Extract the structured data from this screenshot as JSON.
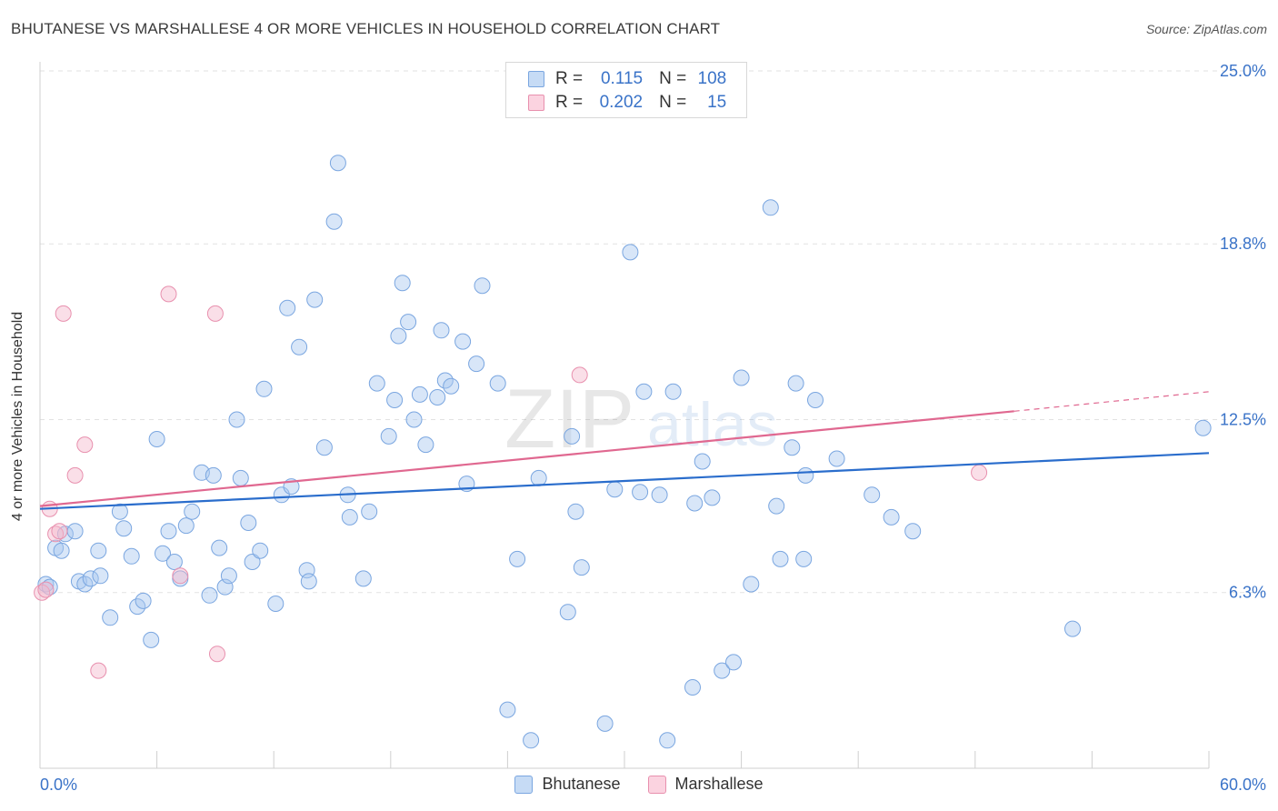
{
  "header": {
    "title": "BHUTANESE VS MARSHALLESE 4 OR MORE VEHICLES IN HOUSEHOLD CORRELATION CHART",
    "source": "Source: ZipAtlas.com"
  },
  "stats": {
    "r_label": "R =",
    "n_label": "N =",
    "rows": [
      {
        "r": "0.115",
        "n": "108",
        "color": "#a8c8f0"
      },
      {
        "r": "0.202",
        "n": "15",
        "color": "#f5b8cc"
      }
    ]
  },
  "legend": {
    "items": [
      {
        "label": "Bhutanese",
        "color": "#a8c8f0"
      },
      {
        "label": "Marshallese",
        "color": "#f5b8cc"
      }
    ]
  },
  "colors": {
    "blue": "#a8c8f0",
    "blue_line": "#2a6dcc",
    "pink": "#f5b8cc",
    "pink_line": "#e06890",
    "tick_text": "#3a73c8"
  },
  "watermark": {
    "zip": "ZIP",
    "atlas": "atlas"
  },
  "chart_data": {
    "type": "scatter",
    "title": "BHUTANESE VS MARSHALLESE 4 OR MORE VEHICLES IN HOUSEHOLD CORRELATION CHART",
    "xlabel": "",
    "ylabel": "4 or more Vehicles in Household",
    "xlim": [
      0,
      60
    ],
    "ylim": [
      0,
      25
    ],
    "x_tick_labels": [
      "0.0%",
      "60.0%"
    ],
    "y_ticks": [
      6.3,
      12.5,
      18.8,
      25.0
    ],
    "y_tick_labels": [
      "6.3%",
      "12.5%",
      "18.8%",
      "25.0%"
    ],
    "series": [
      {
        "name": "Bhutanese",
        "trend": {
          "x": [
            0,
            60
          ],
          "y": [
            9.3,
            11.3
          ]
        },
        "points": [
          [
            0.3,
            6.6
          ],
          [
            0.5,
            6.5
          ],
          [
            0.8,
            7.9
          ],
          [
            1.1,
            7.8
          ],
          [
            1.3,
            8.4
          ],
          [
            1.8,
            8.5
          ],
          [
            2.0,
            6.7
          ],
          [
            2.3,
            6.6
          ],
          [
            2.6,
            6.8
          ],
          [
            3.1,
            6.9
          ],
          [
            3.0,
            7.8
          ],
          [
            3.6,
            5.4
          ],
          [
            4.1,
            9.2
          ],
          [
            4.3,
            8.6
          ],
          [
            4.7,
            7.6
          ],
          [
            5.0,
            5.8
          ],
          [
            5.3,
            6.0
          ],
          [
            5.7,
            4.6
          ],
          [
            6.0,
            11.8
          ],
          [
            6.3,
            7.7
          ],
          [
            6.6,
            8.5
          ],
          [
            6.9,
            7.4
          ],
          [
            7.2,
            6.8
          ],
          [
            7.5,
            8.7
          ],
          [
            7.8,
            9.2
          ],
          [
            8.3,
            10.6
          ],
          [
            8.7,
            6.2
          ],
          [
            8.9,
            10.5
          ],
          [
            9.2,
            7.9
          ],
          [
            9.5,
            6.5
          ],
          [
            9.7,
            6.9
          ],
          [
            10.1,
            12.5
          ],
          [
            10.3,
            10.4
          ],
          [
            10.7,
            8.8
          ],
          [
            10.9,
            7.4
          ],
          [
            11.3,
            7.8
          ],
          [
            11.5,
            13.6
          ],
          [
            12.1,
            5.9
          ],
          [
            12.4,
            9.8
          ],
          [
            12.7,
            16.5
          ],
          [
            12.9,
            10.1
          ],
          [
            13.3,
            15.1
          ],
          [
            13.7,
            7.1
          ],
          [
            13.8,
            6.7
          ],
          [
            14.1,
            16.8
          ],
          [
            14.6,
            11.5
          ],
          [
            15.1,
            19.6
          ],
          [
            15.3,
            21.7
          ],
          [
            15.8,
            9.8
          ],
          [
            15.9,
            9.0
          ],
          [
            16.6,
            6.8
          ],
          [
            16.9,
            9.2
          ],
          [
            17.3,
            13.8
          ],
          [
            17.9,
            11.9
          ],
          [
            18.2,
            13.2
          ],
          [
            18.4,
            15.5
          ],
          [
            18.6,
            17.4
          ],
          [
            18.9,
            16.0
          ],
          [
            19.2,
            12.5
          ],
          [
            19.5,
            13.4
          ],
          [
            19.8,
            11.6
          ],
          [
            20.4,
            13.3
          ],
          [
            20.6,
            15.7
          ],
          [
            20.8,
            13.9
          ],
          [
            21.1,
            13.7
          ],
          [
            21.7,
            15.3
          ],
          [
            21.9,
            10.2
          ],
          [
            22.4,
            14.5
          ],
          [
            22.7,
            17.3
          ],
          [
            23.5,
            13.8
          ],
          [
            24.0,
            2.1
          ],
          [
            24.5,
            7.5
          ],
          [
            25.2,
            1.0
          ],
          [
            25.6,
            10.4
          ],
          [
            27.1,
            5.6
          ],
          [
            27.3,
            11.9
          ],
          [
            27.5,
            9.2
          ],
          [
            27.8,
            7.2
          ],
          [
            29.0,
            1.6
          ],
          [
            29.5,
            10.0
          ],
          [
            30.3,
            18.5
          ],
          [
            30.8,
            9.9
          ],
          [
            31.0,
            13.5
          ],
          [
            31.8,
            9.8
          ],
          [
            32.2,
            1.0
          ],
          [
            32.5,
            13.5
          ],
          [
            33.5,
            2.9
          ],
          [
            33.6,
            9.5
          ],
          [
            34.0,
            11.0
          ],
          [
            34.5,
            9.7
          ],
          [
            35.0,
            3.5
          ],
          [
            35.6,
            3.8
          ],
          [
            36.0,
            14.0
          ],
          [
            36.5,
            6.6
          ],
          [
            37.5,
            20.1
          ],
          [
            37.8,
            9.4
          ],
          [
            38.0,
            7.5
          ],
          [
            38.6,
            11.5
          ],
          [
            38.8,
            13.8
          ],
          [
            39.2,
            7.5
          ],
          [
            39.3,
            10.5
          ],
          [
            39.8,
            13.2
          ],
          [
            40.9,
            11.1
          ],
          [
            42.7,
            9.8
          ],
          [
            43.7,
            9.0
          ],
          [
            44.8,
            8.5
          ],
          [
            53.0,
            5.0
          ],
          [
            59.7,
            12.2
          ]
        ]
      },
      {
        "name": "Marshallese",
        "trend": {
          "x": [
            0,
            50
          ],
          "y": [
            9.4,
            12.8
          ]
        },
        "trend_dashed": {
          "x": [
            50,
            60
          ],
          "y": [
            12.8,
            13.5
          ]
        },
        "points": [
          [
            0.1,
            6.3
          ],
          [
            0.3,
            6.4
          ],
          [
            0.5,
            9.3
          ],
          [
            0.8,
            8.4
          ],
          [
            1.0,
            8.5
          ],
          [
            1.2,
            16.3
          ],
          [
            1.8,
            10.5
          ],
          [
            2.3,
            11.6
          ],
          [
            3.0,
            3.5
          ],
          [
            6.6,
            17.0
          ],
          [
            7.2,
            6.9
          ],
          [
            9.0,
            16.3
          ],
          [
            9.1,
            4.1
          ],
          [
            27.7,
            14.1
          ],
          [
            48.2,
            10.6
          ]
        ]
      }
    ]
  }
}
